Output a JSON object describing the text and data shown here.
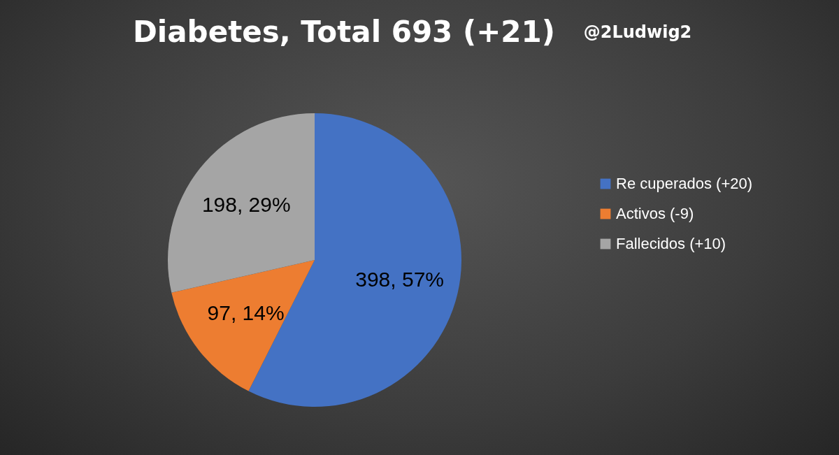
{
  "chart_data": {
    "type": "pie",
    "title": "Diabetes, Total 693 (+21)",
    "annotations": [
      "@2Ludwig2"
    ],
    "categories": [
      "Re cuperados (+20)",
      "Activos (-9)",
      "Fallecidos (+10)"
    ],
    "values": [
      398,
      97,
      198
    ],
    "colors": [
      "#4472c4",
      "#ed7d31",
      "#a5a5a5"
    ],
    "value_labels": [
      "398, 57%",
      "97, 14%",
      "198, 29%"
    ],
    "legend": "right"
  }
}
